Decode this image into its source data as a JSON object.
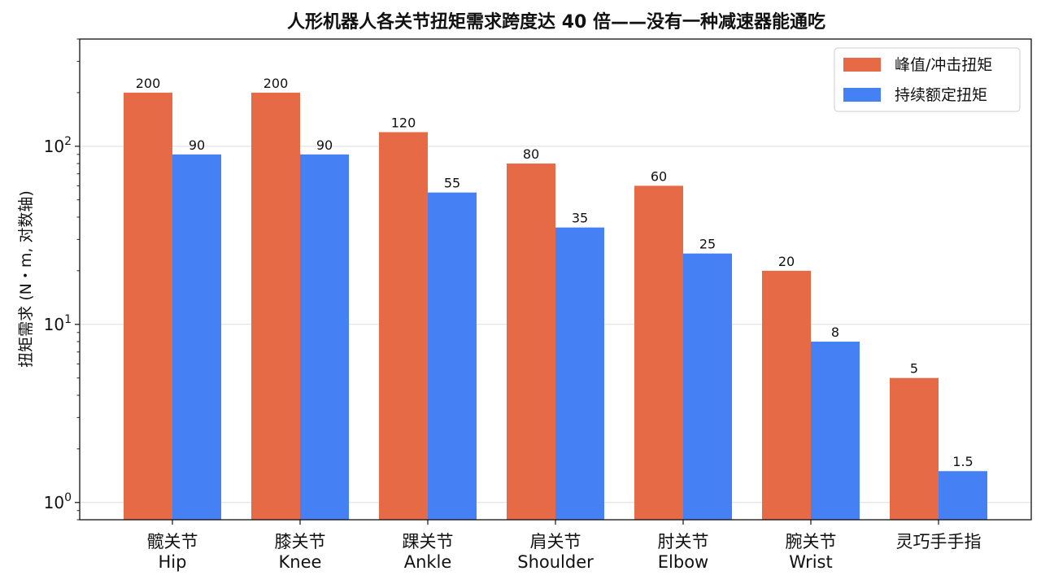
{
  "chart_data": {
    "type": "bar",
    "title": "人形机器人各关节扭矩需求跨度达 40 倍——没有一种减速器能通吃",
    "xlabel": "",
    "ylabel": "扭矩需求 (N・m, 对数轴)",
    "yscale": "log",
    "ylim": [
      0.8,
      400
    ],
    "grid": "horizontal at major ticks",
    "legend_position": "top-right",
    "y_ticks": [
      {
        "value": 1,
        "base": "10",
        "exp": "0"
      },
      {
        "value": 10,
        "base": "10",
        "exp": "1"
      },
      {
        "value": 100,
        "base": "10",
        "exp": "2"
      }
    ],
    "categories": [
      {
        "cn": "髋关节",
        "en": "Hip"
      },
      {
        "cn": "膝关节",
        "en": "Knee"
      },
      {
        "cn": "踝关节",
        "en": "Ankle"
      },
      {
        "cn": "肩关节",
        "en": "Shoulder"
      },
      {
        "cn": "肘关节",
        "en": "Elbow"
      },
      {
        "cn": "腕关节",
        "en": "Wrist"
      },
      {
        "cn": "灵巧手手指",
        "en": ""
      }
    ],
    "series": [
      {
        "name": "峰值/冲击扭矩",
        "color": "#e66a45",
        "values": [
          200,
          200,
          120,
          80,
          60,
          20,
          5
        ],
        "labels": [
          "200",
          "200",
          "120",
          "80",
          "60",
          "20",
          "5"
        ]
      },
      {
        "name": "持续额定扭矩",
        "color": "#4680f5",
        "values": [
          90,
          90,
          55,
          35,
          25,
          8,
          1.5
        ],
        "labels": [
          "90",
          "90",
          "55",
          "35",
          "25",
          "8",
          "1.5"
        ]
      }
    ]
  }
}
